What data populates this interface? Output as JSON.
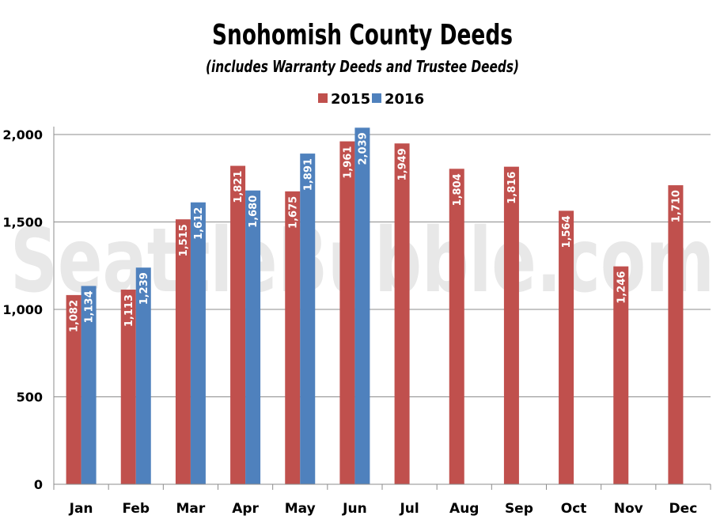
{
  "watermark": "SeattleBubble.com",
  "chart_data": {
    "type": "bar",
    "title": "Snohomish County Deeds",
    "subtitle": "(includes Warranty Deeds and Trustee Deeds)",
    "categories": [
      "Jan",
      "Feb",
      "Mar",
      "Apr",
      "May",
      "Jun",
      "Jul",
      "Aug",
      "Sep",
      "Oct",
      "Nov",
      "Dec"
    ],
    "series": [
      {
        "name": "2015",
        "color": "#c0504d",
        "values": [
          1082,
          1113,
          1515,
          1821,
          1675,
          1961,
          1949,
          1804,
          1816,
          1564,
          1246,
          1710
        ],
        "labels": [
          "1,082",
          "1,113",
          "1,515",
          "1,821",
          "1,675",
          "1,961",
          "1,949",
          "1,804",
          "1,816",
          "1,564",
          "1,246",
          "1,710"
        ]
      },
      {
        "name": "2016",
        "color": "#4f81bd",
        "values": [
          1134,
          1239,
          1612,
          1680,
          1891,
          2039,
          null,
          null,
          null,
          null,
          null,
          null
        ],
        "labels": [
          "1,134",
          "1,239",
          "1,612",
          "1,680",
          "1,891",
          "2,039",
          null,
          null,
          null,
          null,
          null,
          null
        ]
      }
    ],
    "yticks": [
      "0",
      "500",
      "1,000",
      "1,500",
      "2,000"
    ],
    "ytick_values": [
      0,
      500,
      1000,
      1500,
      2000
    ],
    "ylim": [
      0,
      2000
    ],
    "grid": true,
    "legend_position": "top-center"
  }
}
